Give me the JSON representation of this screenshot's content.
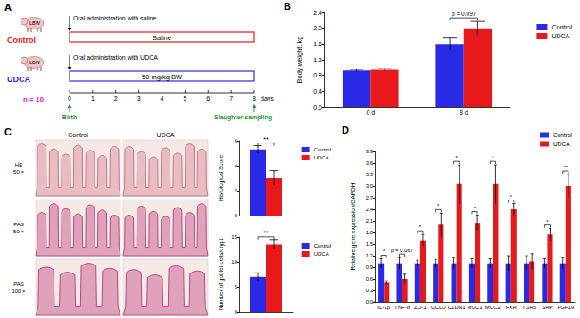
{
  "chart_data": [
    {
      "type": "bar",
      "panel_label": "B",
      "y_label": "Body weight, kg",
      "categories": [
        "0 d",
        "8 d"
      ],
      "series": [
        {
          "name": "Control",
          "color": "#2a2ae6",
          "values": [
            0.92,
            1.6
          ],
          "errors": [
            0.03,
            0.15
          ]
        },
        {
          "name": "UDCA",
          "color": "#e8191b",
          "values": [
            0.94,
            2.0
          ],
          "errors": [
            0.03,
            0.17
          ]
        }
      ],
      "annotations": [
        null,
        "p = 0.097"
      ],
      "ylim": [
        0,
        2.4
      ],
      "yticks": [
        {
          "value": 0,
          "label": "0.0"
        },
        0.4,
        0.8,
        1.2,
        1.6,
        {
          "value": 2,
          "label": "2.0"
        },
        2.4
      ],
      "grid": false,
      "legend": "right"
    },
    {
      "type": "bar",
      "y_label": "Histological Score",
      "categories": [
        null
      ],
      "series": [
        {
          "name": "Control",
          "color": "#2a2ae6",
          "values": [
            5.3
          ],
          "errors": [
            0.3
          ]
        },
        {
          "name": "UDCA",
          "color": "#e8191b",
          "values": [
            3.0
          ],
          "errors": [
            0.6
          ]
        }
      ],
      "annotations": [
        "**"
      ],
      "ylim": [
        0,
        6
      ],
      "yticks": [
        0,
        2,
        4,
        6
      ],
      "grid": false,
      "legend": "right",
      "tick_labels": "y"
    },
    {
      "type": "bar",
      "y_label": "Number of goblet cells/crypt",
      "categories": [
        null
      ],
      "series": [
        {
          "name": "Control",
          "color": "#2a2ae6",
          "values": [
            7.0
          ],
          "errors": [
            0.8
          ]
        },
        {
          "name": "UDCA",
          "color": "#e8191b",
          "values": [
            13.5
          ],
          "errors": [
            1.0
          ]
        }
      ],
      "annotations": [
        "**"
      ],
      "ylim": [
        0,
        15
      ],
      "yticks": [
        0,
        5,
        10,
        15
      ],
      "grid": false,
      "legend": "right",
      "tick_labels": "y"
    },
    {
      "type": "bar",
      "panel_label": "D",
      "y_label": "Relative gene expression/GAPDH",
      "categories": [
        "IL-1β",
        "TNF-α",
        "ZO-1",
        "OCLD",
        "CLDN1",
        "MUC1",
        "MUC2",
        "FXR",
        "TGR5",
        "SHP",
        "FGF19"
      ],
      "series": [
        {
          "name": "Control",
          "color": "#2a2ae6",
          "values": [
            1.0,
            1.0,
            1.0,
            1.0,
            1.0,
            1.0,
            1.0,
            1.0,
            1.0,
            1.0,
            1.0
          ],
          "errors": [
            0.12,
            0.15,
            0.08,
            0.1,
            0.15,
            0.12,
            0.12,
            0.2,
            0.2,
            0.12,
            0.15
          ]
        },
        {
          "name": "UDCA",
          "color": "#e8191b",
          "values": [
            0.5,
            0.6,
            1.6,
            2.0,
            3.05,
            2.05,
            3.05,
            2.4,
            1.05,
            1.75,
            3.0
          ],
          "errors": [
            0.05,
            0.12,
            0.15,
            0.3,
            0.5,
            0.2,
            0.5,
            0.15,
            0.2,
            0.15,
            0.3
          ]
        }
      ],
      "annotations": [
        "*",
        "p = 0.067",
        "*",
        "*",
        "*",
        "*",
        "*",
        "*",
        null,
        "*",
        "**"
      ],
      "ylim": [
        0,
        3.9
      ],
      "yticks": [
        {
          "value": 0,
          "label": "0.0"
        },
        0.3,
        0.6,
        0.9,
        1.2,
        1.5,
        1.8,
        2.1,
        2.4,
        2.7,
        {
          "value": 3,
          "label": "3.0"
        },
        3.3,
        3.6,
        3.9
      ],
      "grid": false,
      "legend": "upper right"
    }
  ],
  "diagram": {
    "panel_label": "A",
    "arms": [
      {
        "name": "Control",
        "color": "#e8191b",
        "subject": "LBW",
        "treatment": "Oral administration with saline",
        "bar_text": "Saline"
      },
      {
        "name": "UDCA",
        "color": "#2a2ae6",
        "subject": "LBW",
        "treatment": "Oral administration with UDCA",
        "bar_text": "50 mg/kg BW"
      }
    ],
    "n": "n = 10",
    "n_color": "#e020e0",
    "days": [
      0,
      1,
      2,
      3,
      4,
      5,
      6,
      7,
      8
    ],
    "days_label": "days",
    "start_label": "Birth",
    "end_label": "Slaughter sampling",
    "timeline_color": "#1f9a2a"
  },
  "histology": {
    "panel_label": "C",
    "columns": [
      "Control",
      "UDCA"
    ],
    "rows": [
      [
        "HE",
        "50 ×"
      ],
      [
        "PAS",
        "50 ×"
      ],
      [
        "PAS",
        "100 ×"
      ]
    ]
  }
}
